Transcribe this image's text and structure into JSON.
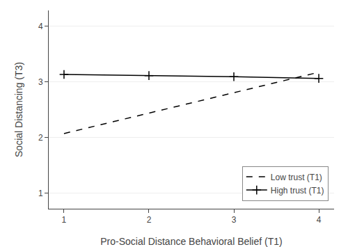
{
  "chart_data": {
    "type": "line",
    "xlabel": "Pro-Social Distance Behavioral Belief (T1)",
    "ylabel": "Social Distancing (T3)",
    "series": [
      {
        "name": "Low trust (T1)",
        "color": "#000000",
        "line_style": "dashed",
        "marker": "none",
        "x": [
          1,
          4
        ],
        "values": [
          2.07,
          3.17
        ]
      },
      {
        "name": "High trust (T1)",
        "color": "#000000",
        "line_style": "solid",
        "marker": "plus",
        "x": [
          1,
          2,
          3,
          4
        ],
        "values": [
          3.13,
          3.11,
          3.09,
          3.06
        ]
      }
    ],
    "xlim": [
      0.82,
      4.18
    ],
    "ylim": [
      0.72,
      4.28
    ],
    "xticks": [
      1,
      2,
      3,
      4
    ],
    "yticks": [
      1,
      2,
      3,
      4
    ],
    "grid": true,
    "legend": "lower right"
  }
}
